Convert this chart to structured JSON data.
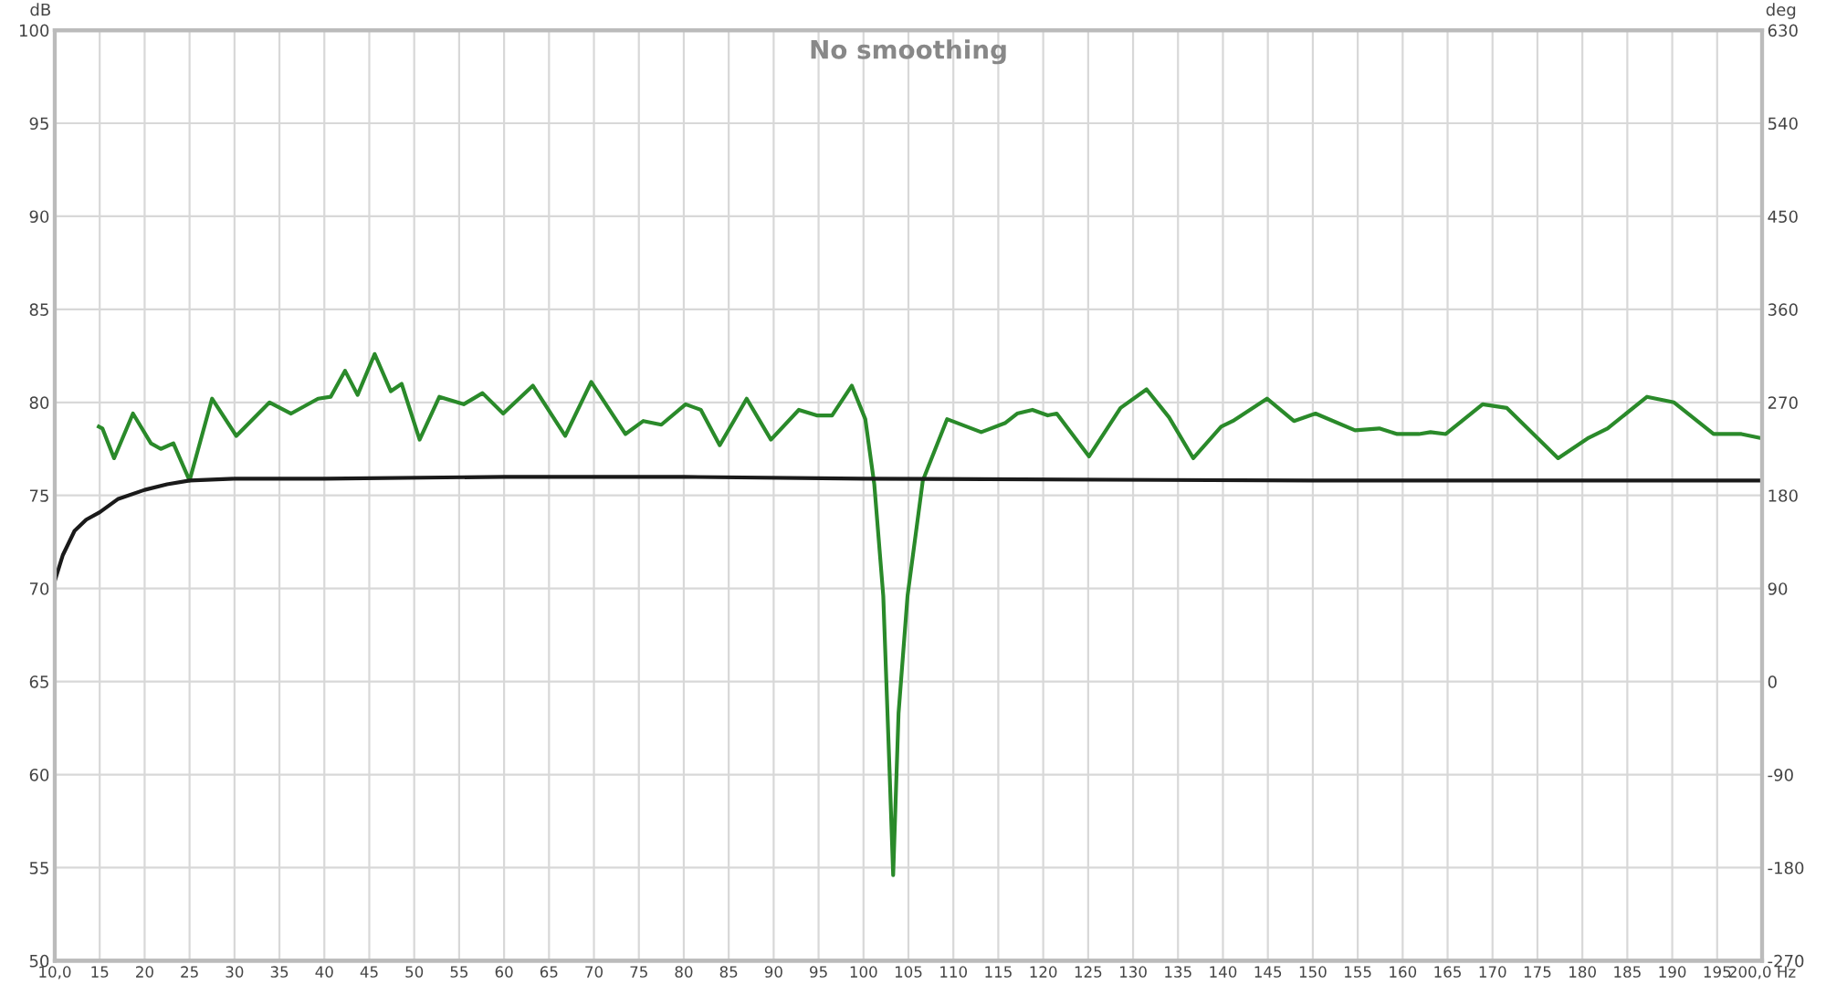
{
  "chart_data": {
    "type": "line",
    "title": "No smoothing",
    "ylabel": "dB",
    "y2label": "deg",
    "xlim": [
      10,
      200
    ],
    "xticks": [
      {
        "value": 10,
        "label": "10,0"
      },
      15,
      20,
      25,
      30,
      35,
      40,
      45,
      50,
      55,
      60,
      65,
      70,
      75,
      80,
      85,
      90,
      95,
      100,
      105,
      110,
      115,
      120,
      125,
      130,
      135,
      140,
      145,
      150,
      155,
      160,
      165,
      170,
      175,
      180,
      185,
      190,
      195,
      {
        "value": 200,
        "label": "200,0 Hz"
      }
    ],
    "ylim": [
      50,
      100
    ],
    "yticks": [
      50,
      55,
      60,
      65,
      70,
      75,
      80,
      85,
      90,
      95,
      100
    ],
    "y2lim": [
      -270,
      630
    ],
    "y2ticks": [
      -270,
      -180,
      -90,
      0,
      90,
      180,
      270,
      360,
      450,
      540,
      630
    ],
    "grid": true,
    "legend": false,
    "line_style": "solid",
    "marker": "none",
    "series": [
      {
        "color": "#2a8a2a",
        "x": [
          14.9,
          15.3,
          16.6,
          18.7,
          20.7,
          21.8,
          23.2,
          25.0,
          27.5,
          30.2,
          33.9,
          36.3,
          39.3,
          40.7,
          42.3,
          43.7,
          45.6,
          47.4,
          48.6,
          50.6,
          52.8,
          55.5,
          57.6,
          59.9,
          63.2,
          66.8,
          69.7,
          73.5,
          75.5,
          77.5,
          80.2,
          81.9,
          84.0,
          87.0,
          89.7,
          92.8,
          94.8,
          96.5,
          98.7,
          100.2,
          101.2,
          102.2,
          102.9,
          103.3,
          103.9,
          104.9,
          106.6,
          109.3,
          113.1,
          115.8,
          117.1,
          118.8,
          120.5,
          121.5,
          125.1,
          128.6,
          131.5,
          134.0,
          136.7,
          139.8,
          141.1,
          144.9,
          147.9,
          150.3,
          154.7,
          157.4,
          159.4,
          161.8,
          163.1,
          164.8,
          168.9,
          171.6,
          177.3,
          180.7,
          182.8,
          187.2,
          190.2,
          194.6,
          197.7,
          199.7
        ],
        "values": [
          78.7,
          78.6,
          77.0,
          79.4,
          77.8,
          77.5,
          77.8,
          75.8,
          80.2,
          78.2,
          80.0,
          79.4,
          80.2,
          80.3,
          81.7,
          80.4,
          82.6,
          80.6,
          81.0,
          78.0,
          80.3,
          79.9,
          80.5,
          79.4,
          80.9,
          78.2,
          81.1,
          78.3,
          79.0,
          78.8,
          79.9,
          79.6,
          77.7,
          80.2,
          78.0,
          79.6,
          79.3,
          79.3,
          80.9,
          79.1,
          75.6,
          69.6,
          60.2,
          54.6,
          63.3,
          69.6,
          75.8,
          79.1,
          78.4,
          78.9,
          79.4,
          79.6,
          79.3,
          79.4,
          77.1,
          79.7,
          80.7,
          79.2,
          77.0,
          78.7,
          79.0,
          80.2,
          79.0,
          79.4,
          78.5,
          78.6,
          78.3,
          78.3,
          78.4,
          78.3,
          79.9,
          79.7,
          77.0,
          78.1,
          78.6,
          80.3,
          80.0,
          78.3,
          78.3,
          78.1
        ]
      },
      {
        "color": "#1a1a1a",
        "x": [
          10,
          10.9,
          12.2,
          13.5,
          15,
          17,
          20,
          22.5,
          25,
          30,
          40,
          60,
          80,
          100,
          150,
          200
        ],
        "values": [
          70.4,
          71.8,
          73.1,
          73.7,
          74.1,
          74.8,
          75.3,
          75.6,
          75.8,
          75.9,
          75.9,
          76.0,
          76.0,
          75.9,
          75.8,
          75.8
        ]
      }
    ]
  }
}
